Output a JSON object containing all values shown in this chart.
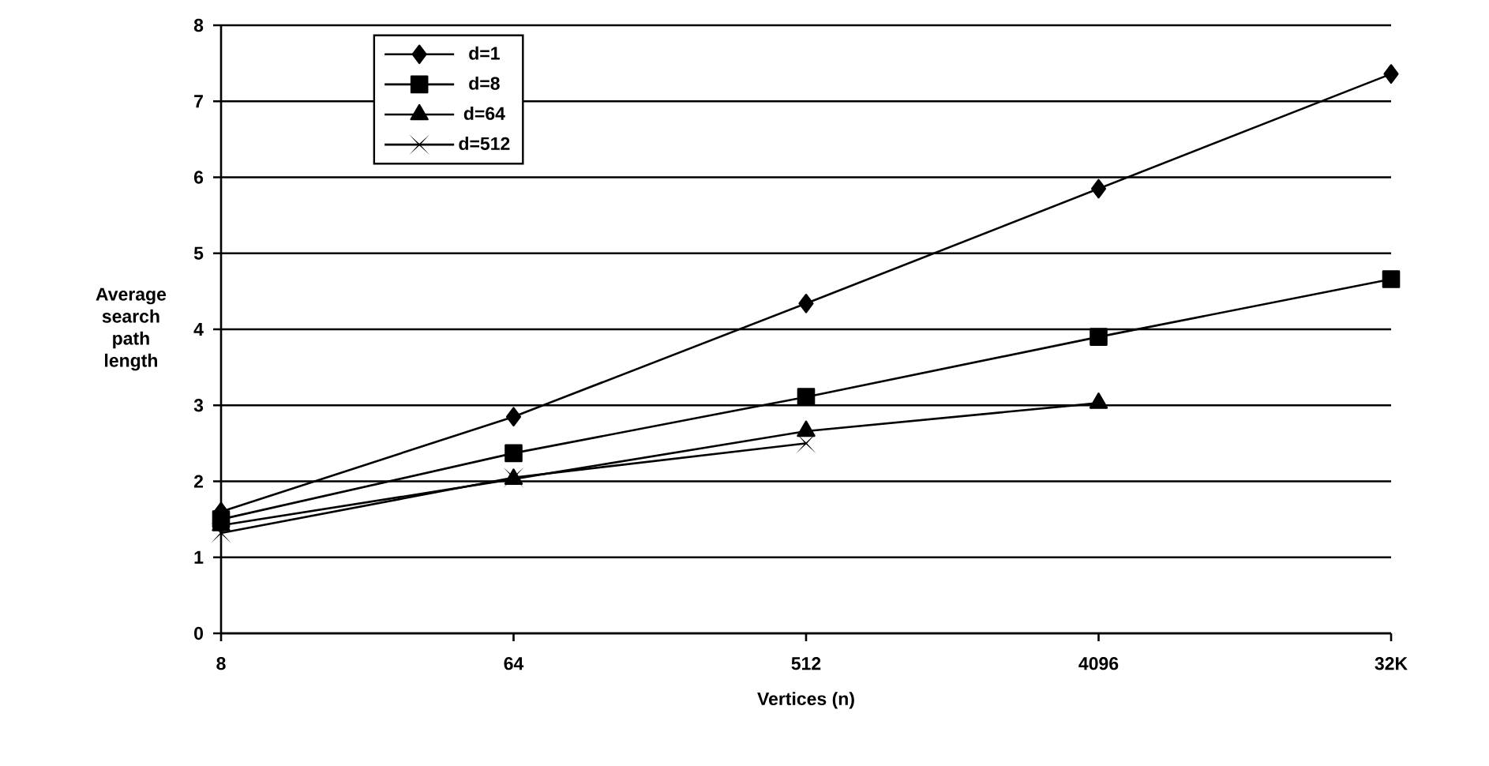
{
  "chart_data": {
    "type": "line",
    "xlabel": "Vertices (n)",
    "ylabel": "Average search path length",
    "categories": [
      "8",
      "64",
      "512",
      "4096",
      "32K"
    ],
    "series": [
      {
        "name": "d=1",
        "color": "#000000",
        "marker": "diamond",
        "values": [
          1.6,
          2.85,
          4.34,
          5.85,
          7.36
        ]
      },
      {
        "name": "d=8",
        "color": "#000000",
        "marker": "square",
        "values": [
          1.5,
          2.37,
          3.11,
          3.9,
          4.66
        ]
      },
      {
        "name": "d=64",
        "color": "#000000",
        "marker": "triangle",
        "values": [
          1.42,
          2.03,
          2.66,
          3.03,
          null
        ]
      },
      {
        "name": "d=512",
        "color": "#000000",
        "marker": "cross",
        "values": [
          1.32,
          2.05,
          2.5,
          null,
          null
        ]
      }
    ],
    "ylim": [
      0,
      8
    ],
    "yticks": [
      0,
      1,
      2,
      3,
      4,
      5,
      6,
      7,
      8
    ],
    "grid": "y",
    "legend": "top left"
  }
}
